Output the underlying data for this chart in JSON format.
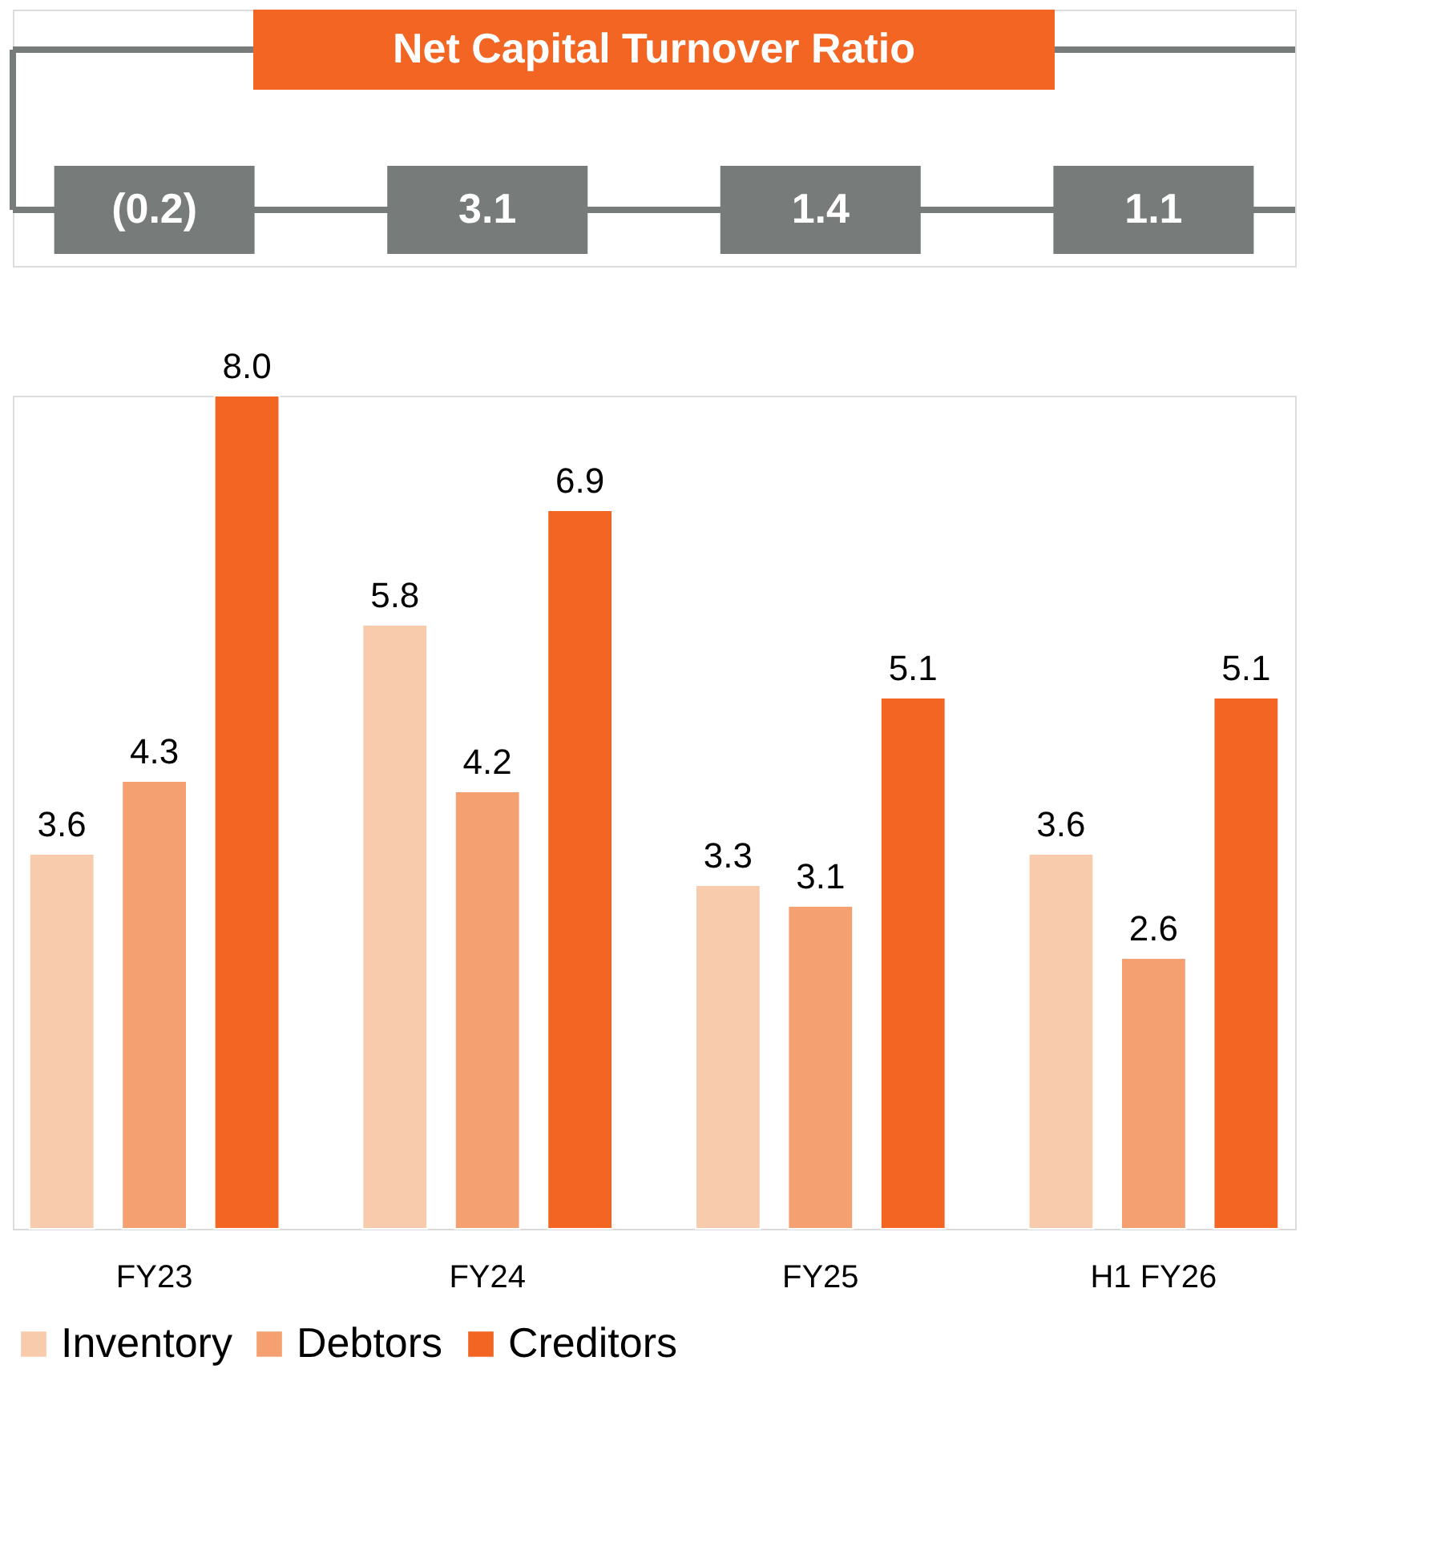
{
  "chart_data": {
    "type": "bar",
    "title": "Net Capital Turnover Ratio",
    "categories": [
      "FY23",
      "FY24",
      "FY25",
      "H1 FY26"
    ],
    "series": [
      {
        "name": "Inventory",
        "color": "#f8cbad",
        "values": [
          3.6,
          5.8,
          3.3,
          3.6
        ],
        "value_labels": [
          "3.6",
          "5.8",
          "3.3",
          "3.6"
        ]
      },
      {
        "name": "Debtors",
        "color": "#f4a070",
        "values": [
          4.3,
          4.2,
          3.1,
          2.6
        ],
        "value_labels": [
          "4.3",
          "4.2",
          "3.1",
          "2.6"
        ]
      },
      {
        "name": "Creditors",
        "color": "#f26522",
        "values": [
          8.0,
          6.9,
          5.1,
          5.1
        ],
        "value_labels": [
          "8.0",
          "6.9",
          "5.1",
          "5.1"
        ]
      }
    ],
    "annotations": [
      "(0.2)",
      "3.1",
      "1.4",
      "1.1"
    ],
    "legend": "bottom",
    "tick_labels": "x",
    "grid": false
  }
}
